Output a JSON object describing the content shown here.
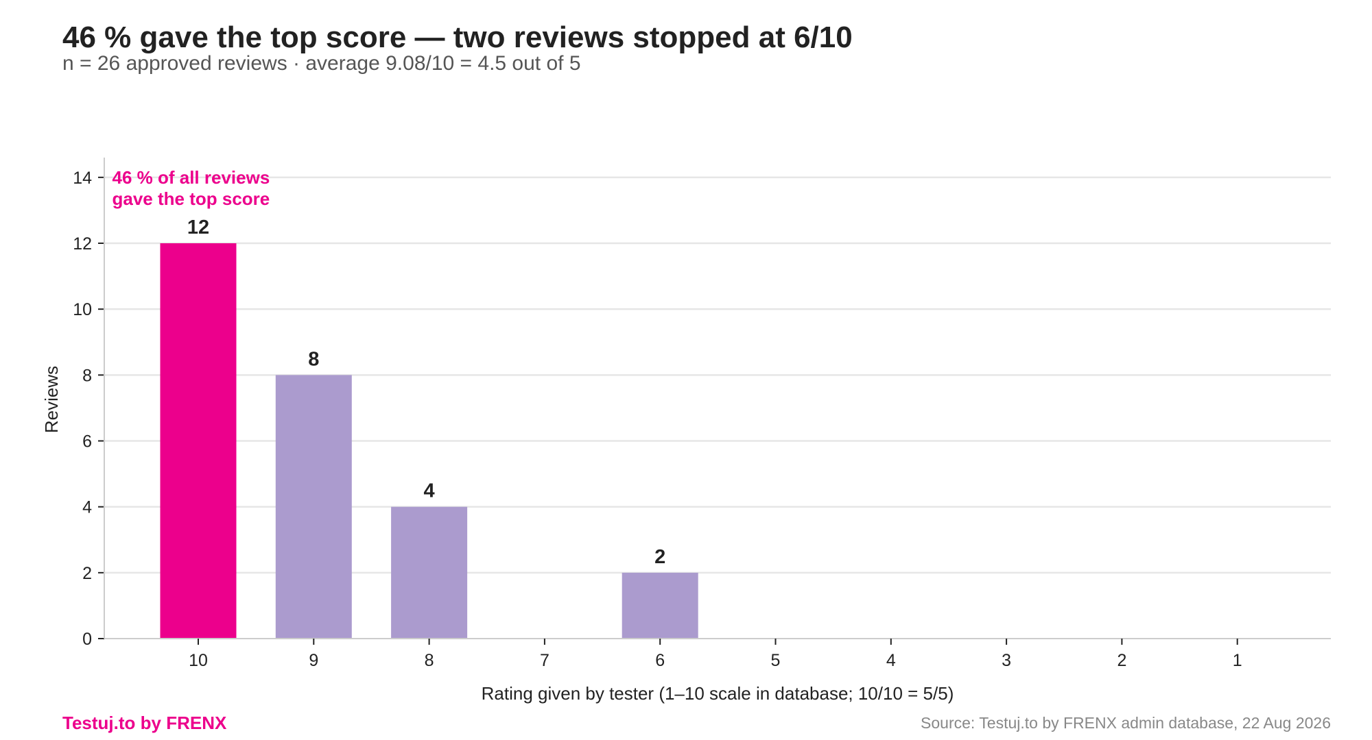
{
  "header": {
    "title": "46 % gave the top score — two reviews stopped at 6/10",
    "subtitle": "n = 26 approved reviews · average 9.08/10 = 4.5 out of 5"
  },
  "footer": {
    "brand": "Testuj.to by FRENX",
    "source": "Source: Testuj.to by FRENX admin database, 22 Aug 2026"
  },
  "colors": {
    "highlight": "#ec008c",
    "bar": "#ab9bce",
    "grid": "#e6e6e6",
    "axis": "#cccccc",
    "text": "#222222"
  },
  "chart_data": {
    "type": "bar",
    "title": "46 % gave the top score — two reviews stopped at 6/10",
    "subtitle": "n = 26 approved reviews · average 9.08/10 = 4.5 out of 5",
    "categories": [
      "10",
      "9",
      "8",
      "7",
      "6",
      "5",
      "4",
      "3",
      "2",
      "1"
    ],
    "values": [
      12,
      8,
      4,
      0,
      2,
      0,
      0,
      0,
      0,
      0
    ],
    "highlight_category": "10",
    "xlabel": "Rating given by tester (1–10 scale in database; 10/10 = 5/5)",
    "ylabel": "Reviews",
    "ylim": [
      0,
      14.6
    ],
    "yticks": [
      0,
      2,
      4,
      6,
      8,
      10,
      12,
      14
    ],
    "grid": "horizontal",
    "annotation": {
      "lines": [
        "46 % of all reviews",
        "gave the top score"
      ],
      "category": "10"
    },
    "data_labels": "non-zero values shown above bars"
  }
}
